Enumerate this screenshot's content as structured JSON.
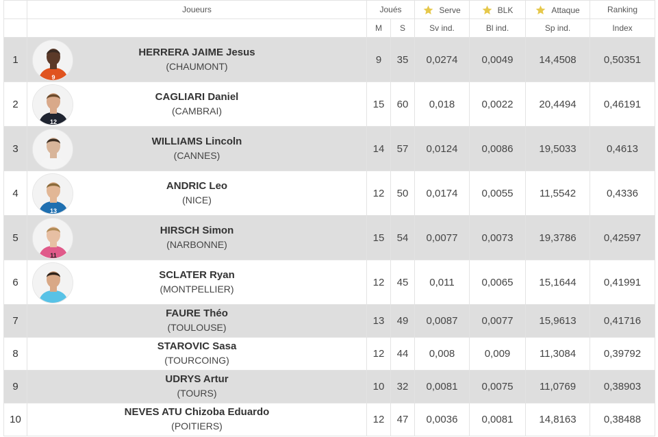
{
  "header": {
    "players": "Joueurs",
    "played": "Joués",
    "serve": "Serve",
    "blk": "BLK",
    "attack": "Attaque",
    "ranking": "Ranking",
    "m": "M",
    "s": "S",
    "sv_ind": "Sv ind.",
    "bl_ind": "Bl ind.",
    "sp_ind": "Sp ind.",
    "index": "Index"
  },
  "colors": {
    "star": "#e6c84b",
    "row_alt": "#dedede",
    "border": "#e3e3e3"
  },
  "rows": [
    {
      "rank": "1",
      "name": "HERRERA JAIME Jesus",
      "club": "(CHAUMONT)",
      "m": "9",
      "s": "35",
      "sv": "0,0274",
      "bl": "0,0049",
      "sp": "14,4508",
      "index": "0,50351",
      "jersey": "orange",
      "number": "9"
    },
    {
      "rank": "2",
      "name": "CAGLIARI Daniel",
      "club": "(CAMBRAI)",
      "m": "15",
      "s": "60",
      "sv": "0,018",
      "bl": "0,0022",
      "sp": "20,4494",
      "index": "0,46191",
      "jersey": "black-red",
      "number": "12"
    },
    {
      "rank": "3",
      "name": "WILLIAMS Lincoln",
      "club": "(CANNES)",
      "m": "14",
      "s": "57",
      "sv": "0,0124",
      "bl": "0,0086",
      "sp": "19,5033",
      "index": "0,4613",
      "jersey": "white",
      "number": ""
    },
    {
      "rank": "4",
      "name": "ANDRIC Leo",
      "club": "(NICE)",
      "m": "12",
      "s": "50",
      "sv": "0,0174",
      "bl": "0,0055",
      "sp": "11,5542",
      "index": "0,4336",
      "jersey": "blue-yellow",
      "number": "13"
    },
    {
      "rank": "5",
      "name": "HIRSCH Simon",
      "club": "(NARBONNE)",
      "m": "15",
      "s": "54",
      "sv": "0,0077",
      "bl": "0,0073",
      "sp": "19,3786",
      "index": "0,42597",
      "jersey": "pink",
      "number": "11"
    },
    {
      "rank": "6",
      "name": "SCLATER Ryan",
      "club": "(MONTPELLIER)",
      "m": "12",
      "s": "45",
      "sv": "0,011",
      "bl": "0,0065",
      "sp": "15,1644",
      "index": "0,41991",
      "jersey": "sky",
      "number": ""
    },
    {
      "rank": "7",
      "name": "FAURE Théo",
      "club": "(TOULOUSE)",
      "m": "13",
      "s": "49",
      "sv": "0,0087",
      "bl": "0,0077",
      "sp": "15,9613",
      "index": "0,41716"
    },
    {
      "rank": "8",
      "name": "STAROVIC Sasa",
      "club": "(TOURCOING)",
      "m": "12",
      "s": "44",
      "sv": "0,008",
      "bl": "0,009",
      "sp": "11,3084",
      "index": "0,39792"
    },
    {
      "rank": "9",
      "name": "UDRYS Artur",
      "club": "(TOURS)",
      "m": "10",
      "s": "32",
      "sv": "0,0081",
      "bl": "0,0075",
      "sp": "11,0769",
      "index": "0,38903"
    },
    {
      "rank": "10",
      "name": "NEVES ATU Chizoba Eduardo",
      "club": "(POITIERS)",
      "m": "12",
      "s": "47",
      "sv": "0,0036",
      "bl": "0,0081",
      "sp": "14,8163",
      "index": "0,38488"
    }
  ]
}
